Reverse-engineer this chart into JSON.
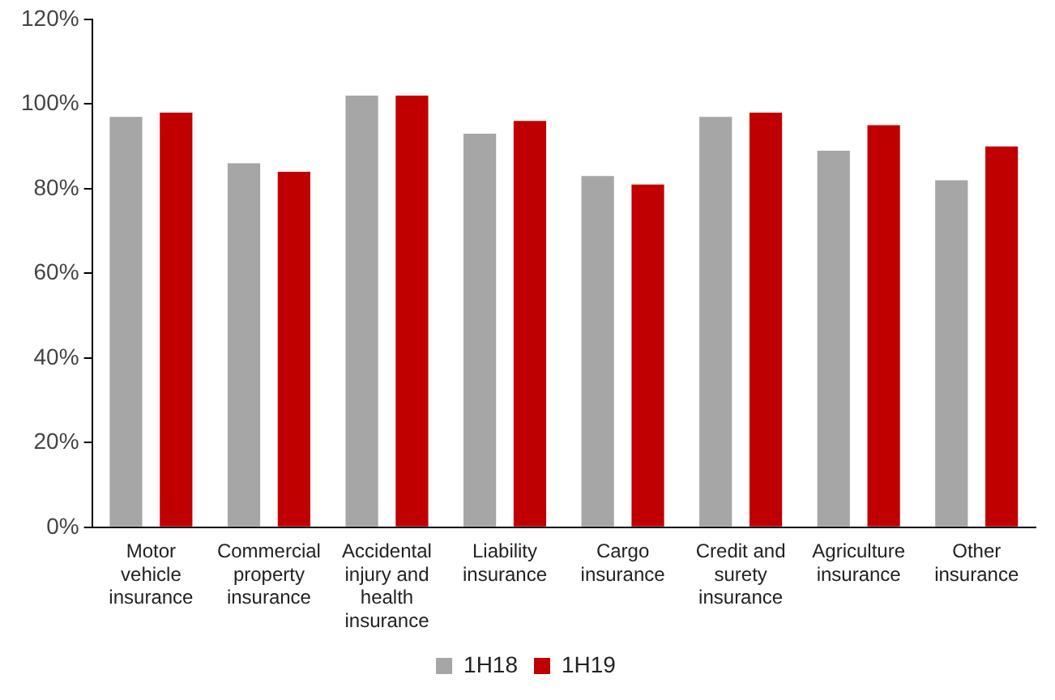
{
  "chart_data": {
    "type": "bar",
    "categories": [
      "Motor vehicle insurance",
      "Commercial property insurance",
      "Accidental injury and health insurance",
      "Liability insurance",
      "Cargo insurance",
      "Credit and surety insurance",
      "Agriculture insurance",
      "Other insurance"
    ],
    "series": [
      {
        "name": "1H18",
        "color": "#a6a6a6",
        "values": [
          97,
          86,
          102,
          93,
          83,
          97,
          89,
          82
        ]
      },
      {
        "name": "1H19",
        "color": "#c00000",
        "values": [
          98,
          84,
          102,
          96,
          81,
          98,
          95,
          90
        ]
      }
    ],
    "ylim": [
      0,
      120
    ],
    "yticks": [
      {
        "value": 0,
        "label": "0%"
      },
      {
        "value": 20,
        "label": "20%"
      },
      {
        "value": 40,
        "label": "40%"
      },
      {
        "value": 60,
        "label": "60%"
      },
      {
        "value": 80,
        "label": "80%"
      },
      {
        "value": 100,
        "label": "100%"
      },
      {
        "value": 120,
        "label": "120%"
      }
    ],
    "grid": false,
    "legend": "bottom"
  }
}
